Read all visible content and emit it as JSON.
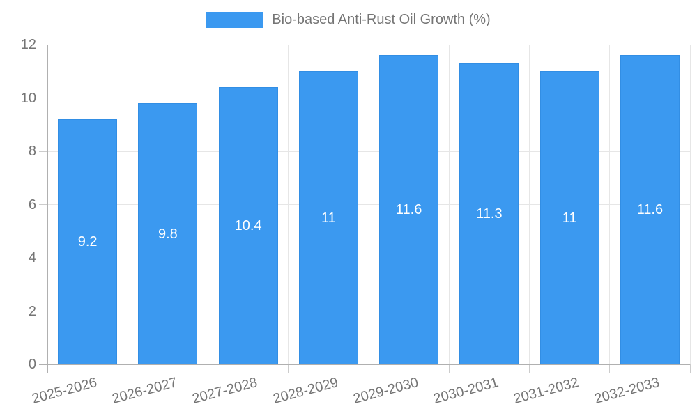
{
  "chart_data": {
    "type": "bar",
    "title": "Bio-based Anti-Rust Oil Growth (%)",
    "legend_position": "top",
    "categories": [
      "2025-2026",
      "2026-2027",
      "2027-2028",
      "2028-2029",
      "2029-2030",
      "2030-2031",
      "2031-2032",
      "2032-2033"
    ],
    "series": [
      {
        "name": "Bio-based Anti-Rust Oil Growth (%)",
        "values": [
          9.2,
          9.8,
          10.4,
          11,
          11.6,
          11.3,
          11,
          11.6
        ],
        "value_labels": [
          "9.2",
          "9.8",
          "10.4",
          "11",
          "11.6",
          "11.3",
          "11",
          "11.6"
        ]
      }
    ],
    "xlabel": "",
    "ylabel": "",
    "ylim": [
      0,
      12
    ],
    "yticks": [
      0,
      2,
      4,
      6,
      8,
      10,
      12
    ],
    "grid": true,
    "colors": {
      "bar": "#3B99F0",
      "axis_text": "#757575",
      "value_text": "#ffffff",
      "gridline": "#e6e6e6",
      "axis_line": "#b0b0b0",
      "tick_line": "#cccccc",
      "background": "#ffffff"
    }
  }
}
